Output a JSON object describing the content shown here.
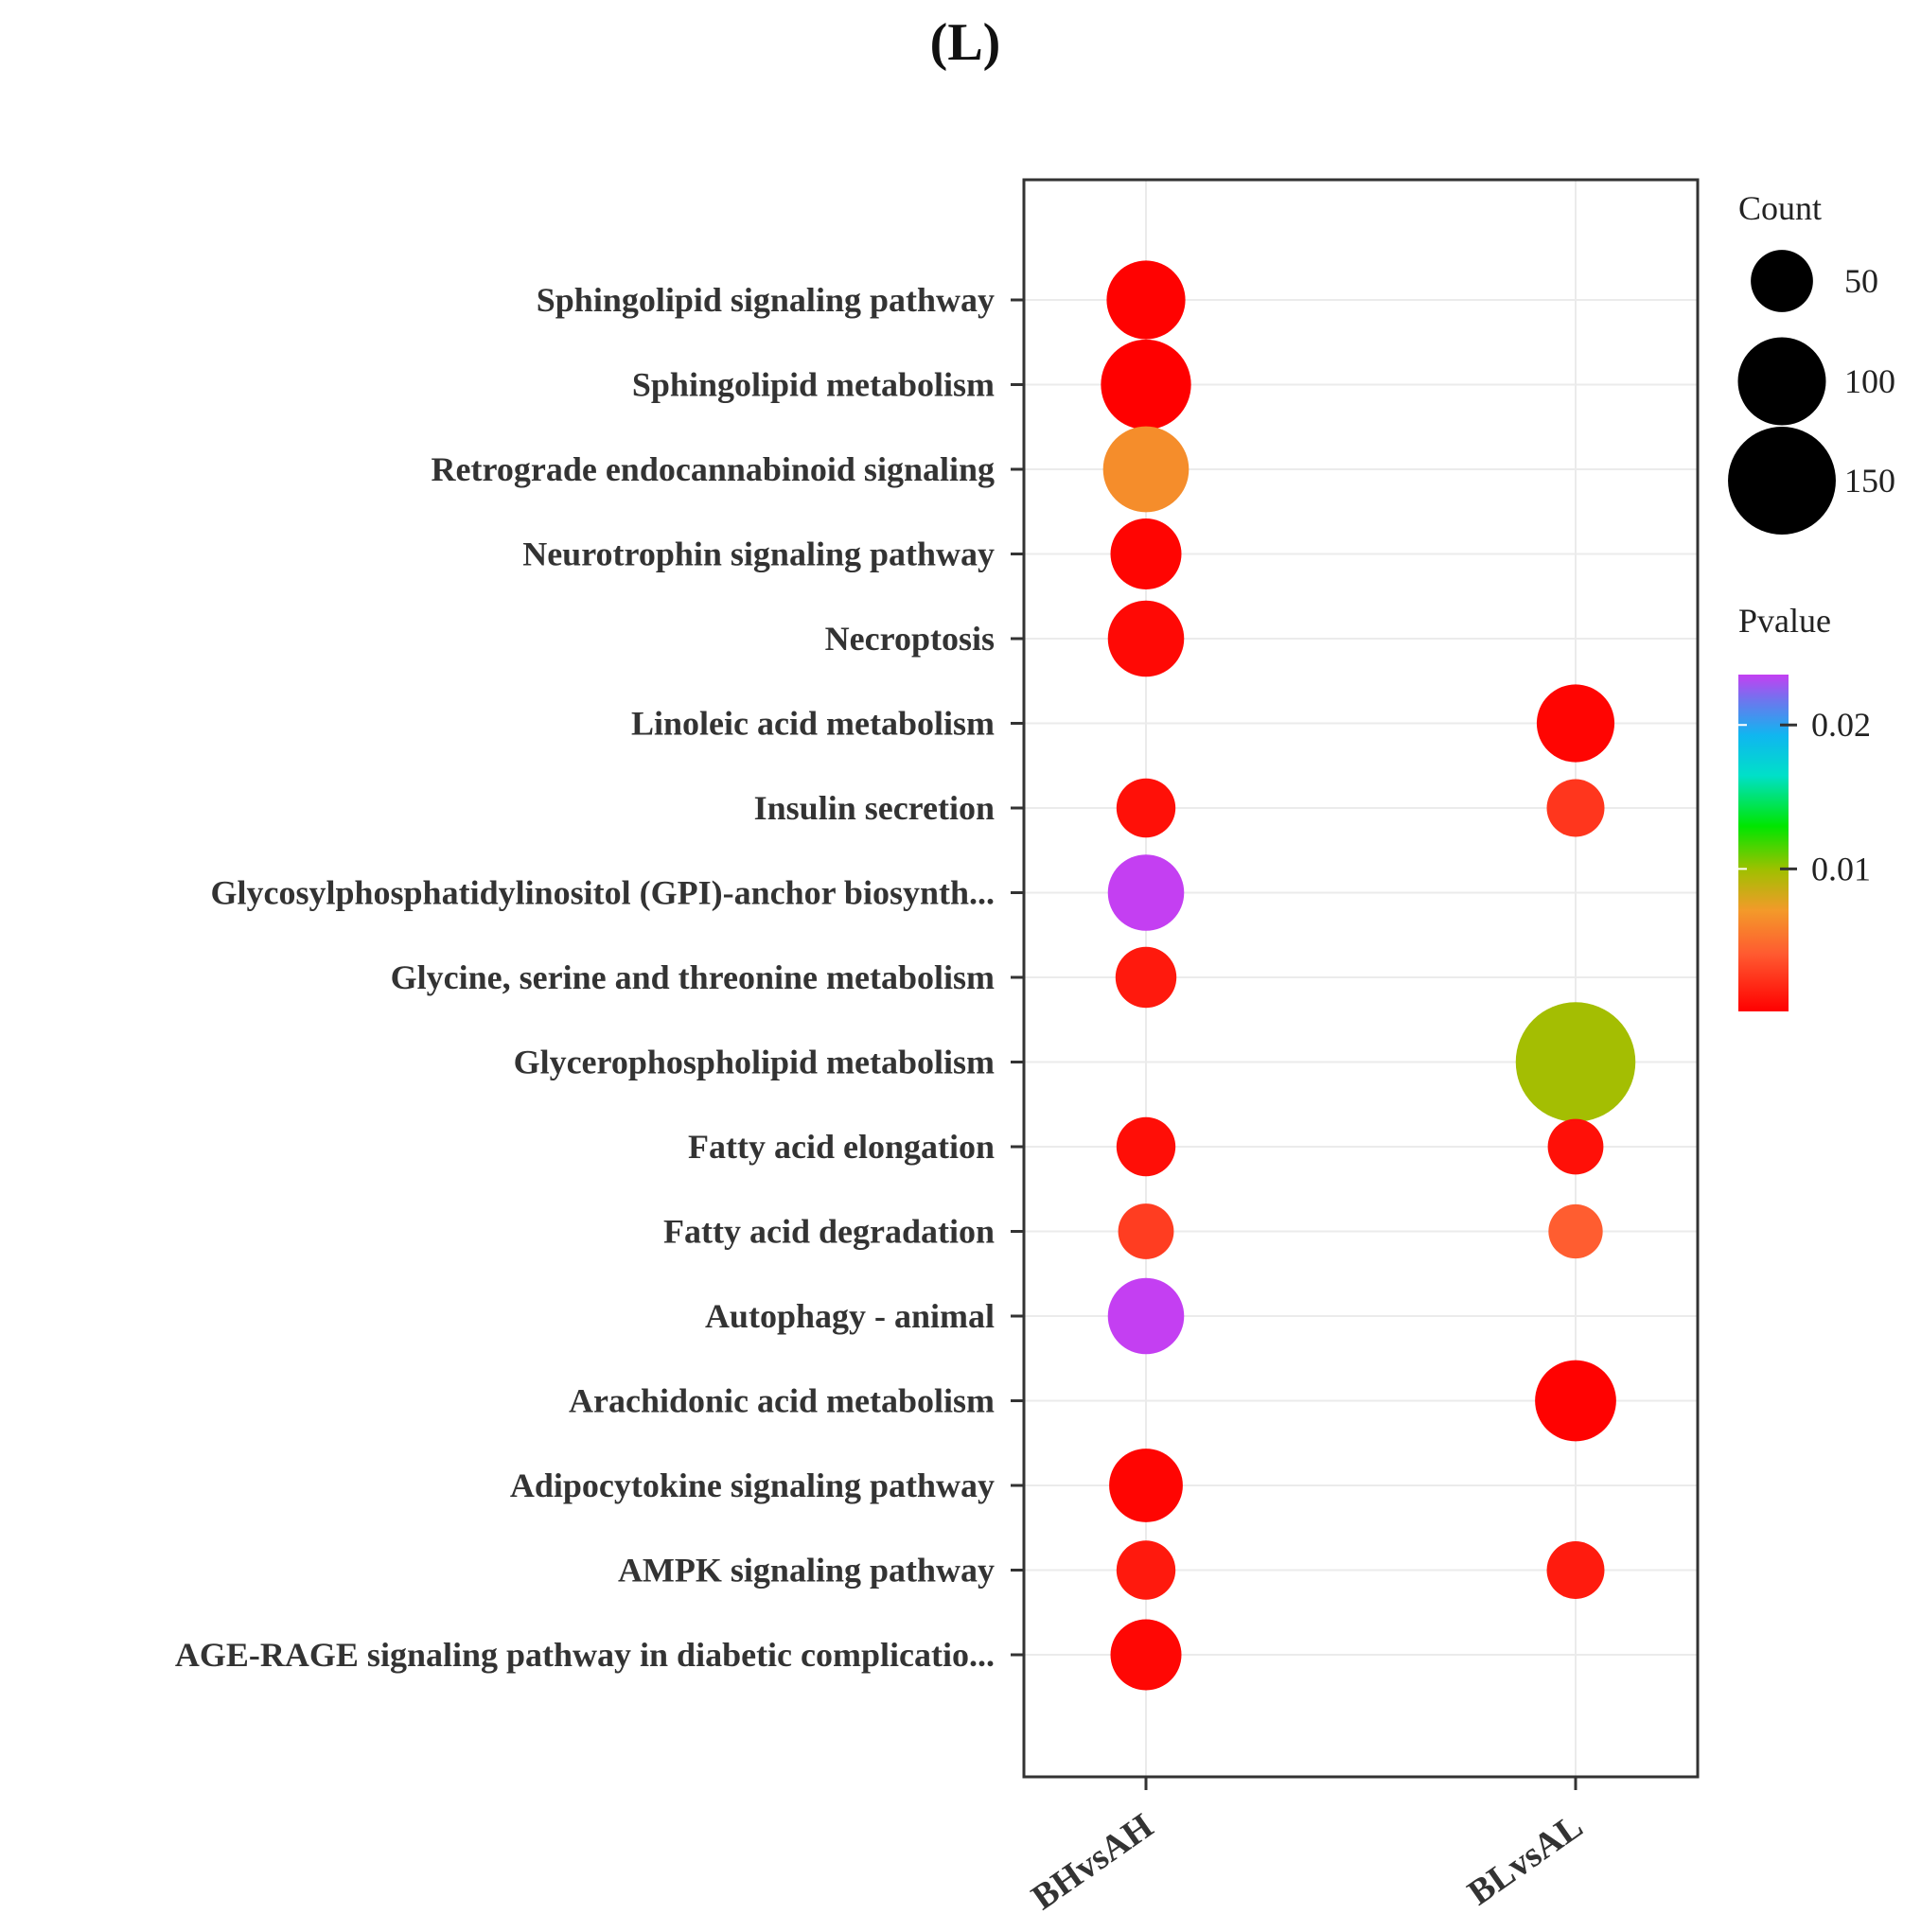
{
  "figure_label": "(L)",
  "chart_data": {
    "type": "scatter",
    "subtype": "bubble",
    "title": "(L)",
    "x": [
      "BHvsAH",
      "BLvsAL"
    ],
    "categories": [
      "Sphingolipid signaling pathway",
      "Sphingolipid metabolism",
      "Retrograde endocannabinoid signaling",
      "Neurotrophin signaling pathway",
      "Necroptosis",
      "Linoleic acid metabolism",
      "Insulin secretion",
      "Glycosylphosphatidylinositol (GPI)-anchor biosynth...",
      "Glycine, serine and threonine metabolism",
      "Glycerophospholipid metabolism",
      "Fatty acid elongation",
      "Fatty acid degradation",
      "Autophagy - animal",
      "Arachidonic acid metabolism",
      "Adipocytokine signaling pathway",
      "AMPK signaling pathway",
      "AGE-RAGE signaling pathway in diabetic complicatio..."
    ],
    "points": [
      {
        "pathway": "Sphingolipid signaling pathway",
        "group": "BHvsAH",
        "count": 80,
        "pvalue": 0.0002
      },
      {
        "pathway": "Sphingolipid metabolism",
        "group": "BHvsAH",
        "count": 105,
        "pvalue": 0.0001
      },
      {
        "pathway": "Retrograde endocannabinoid signaling",
        "group": "BHvsAH",
        "count": 95,
        "pvalue": 0.0065
      },
      {
        "pathway": "Neurotrophin signaling pathway",
        "group": "BHvsAH",
        "count": 65,
        "pvalue": 0.0003
      },
      {
        "pathway": "Necroptosis",
        "group": "BHvsAH",
        "count": 75,
        "pvalue": 0.0005
      },
      {
        "pathway": "Linoleic acid metabolism",
        "group": "BLvsAL",
        "count": 78,
        "pvalue": 0.0003
      },
      {
        "pathway": "Insulin secretion",
        "group": "BHvsAH",
        "count": 45,
        "pvalue": 0.0008
      },
      {
        "pathway": "Insulin secretion",
        "group": "BLvsAL",
        "count": 43,
        "pvalue": 0.0025
      },
      {
        "pathway": "Glycosylphosphatidylinositol (GPI)-anchor biosynth...",
        "group": "BHvsAH",
        "count": 75,
        "pvalue": 0.0235
      },
      {
        "pathway": "Glycine, serine and threonine metabolism",
        "group": "BHvsAH",
        "count": 48,
        "pvalue": 0.0012
      },
      {
        "pathway": "Glycerophospholipid metabolism",
        "group": "BLvsAL",
        "count": 185,
        "pvalue": 0.0098
      },
      {
        "pathway": "Fatty acid elongation",
        "group": "BHvsAH",
        "count": 45,
        "pvalue": 0.0007
      },
      {
        "pathway": "Fatty acid elongation",
        "group": "BLvsAL",
        "count": 40,
        "pvalue": 0.0008
      },
      {
        "pathway": "Fatty acid degradation",
        "group": "BHvsAH",
        "count": 40,
        "pvalue": 0.0028
      },
      {
        "pathway": "Fatty acid degradation",
        "group": "BLvsAL",
        "count": 38,
        "pvalue": 0.0042
      },
      {
        "pathway": "Autophagy - animal",
        "group": "BHvsAH",
        "count": 75,
        "pvalue": 0.0235
      },
      {
        "pathway": "Arachidonic acid metabolism",
        "group": "BLvsAL",
        "count": 85,
        "pvalue": 0.0002
      },
      {
        "pathway": "Adipocytokine signaling pathway",
        "group": "BHvsAH",
        "count": 70,
        "pvalue": 0.0003
      },
      {
        "pathway": "AMPK signaling pathway",
        "group": "BHvsAH",
        "count": 45,
        "pvalue": 0.0012
      },
      {
        "pathway": "AMPK signaling pathway",
        "group": "BLvsAL",
        "count": 43,
        "pvalue": 0.0013
      },
      {
        "pathway": "AGE-RAGE signaling pathway in diabetic complicatio...",
        "group": "BHvsAH",
        "count": 65,
        "pvalue": 0.0004
      }
    ],
    "size_legend": {
      "title": "Count",
      "values": [
        50,
        100,
        150
      ]
    },
    "color_legend": {
      "title": "Pvalue",
      "ticks": [
        0.02,
        0.01
      ],
      "tick_labels": [
        "0.02",
        "0.01"
      ],
      "range": [
        0.0001,
        0.0235
      ]
    },
    "color_scale": [
      "#ff0000",
      "#ff4c2a",
      "#f7a030",
      "#99c800",
      "#00e000",
      "#00d8e0",
      "#2aa6f5",
      "#8266f0",
      "#c93ff3"
    ],
    "grid": true,
    "legend_position": "right",
    "xlabel": "",
    "ylabel": ""
  }
}
